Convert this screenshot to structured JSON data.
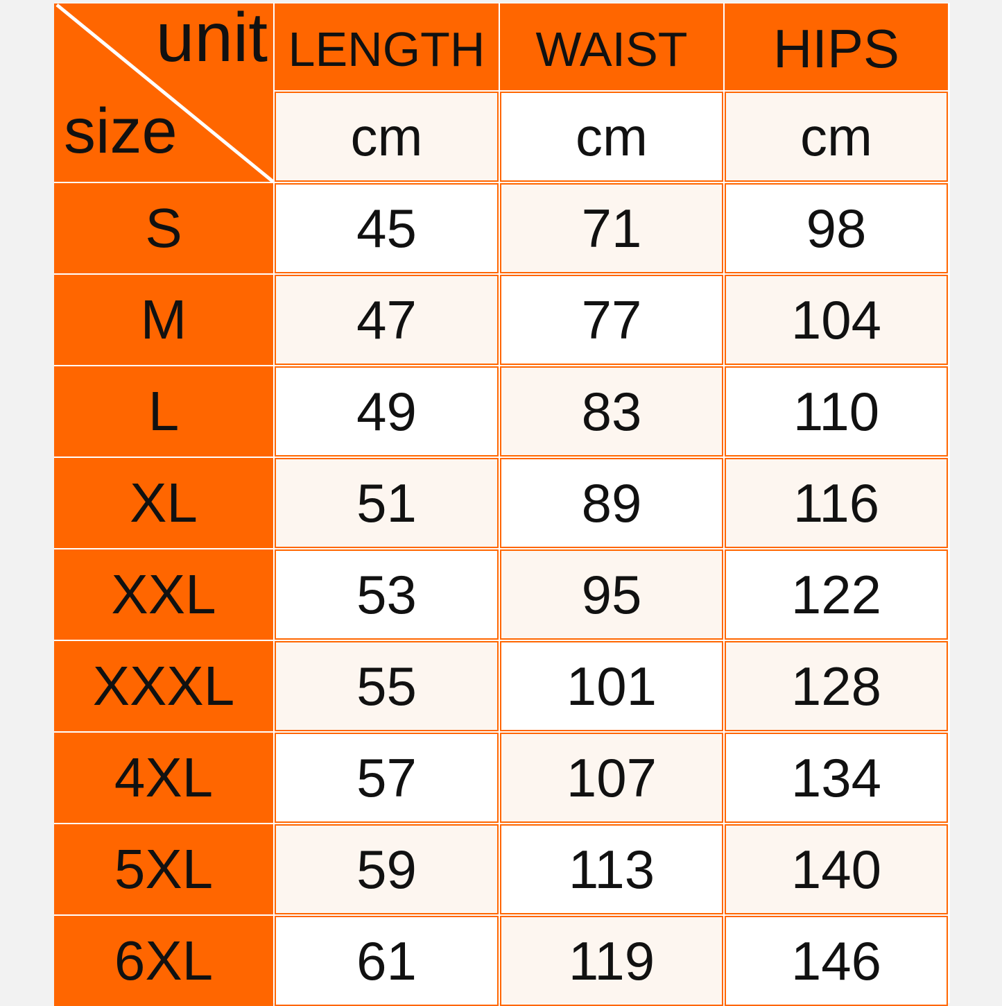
{
  "corner": {
    "unit_label": "unit",
    "size_label": "size"
  },
  "columns": [
    "LENGTH",
    "WAIST",
    "HIPS"
  ],
  "units": [
    "cm",
    "cm",
    "cm"
  ],
  "rows": [
    {
      "size": "S",
      "values": [
        "45",
        "71",
        "98"
      ]
    },
    {
      "size": "M",
      "values": [
        "47",
        "77",
        "104"
      ]
    },
    {
      "size": "L",
      "values": [
        "49",
        "83",
        "110"
      ]
    },
    {
      "size": "XL",
      "values": [
        "51",
        "89",
        "116"
      ]
    },
    {
      "size": "XXL",
      "values": [
        "53",
        "95",
        "122"
      ]
    },
    {
      "size": "XXXL",
      "values": [
        "55",
        "101",
        "128"
      ]
    },
    {
      "size": "4XL",
      "values": [
        "57",
        "107",
        "134"
      ]
    },
    {
      "size": "5XL",
      "values": [
        "59",
        "113",
        "140"
      ]
    },
    {
      "size": "6XL",
      "values": [
        "61",
        "119",
        "146"
      ]
    }
  ],
  "colors": {
    "accent": "#ff6600",
    "cream": "#fdf6f0",
    "background": "#f2f2f2"
  }
}
